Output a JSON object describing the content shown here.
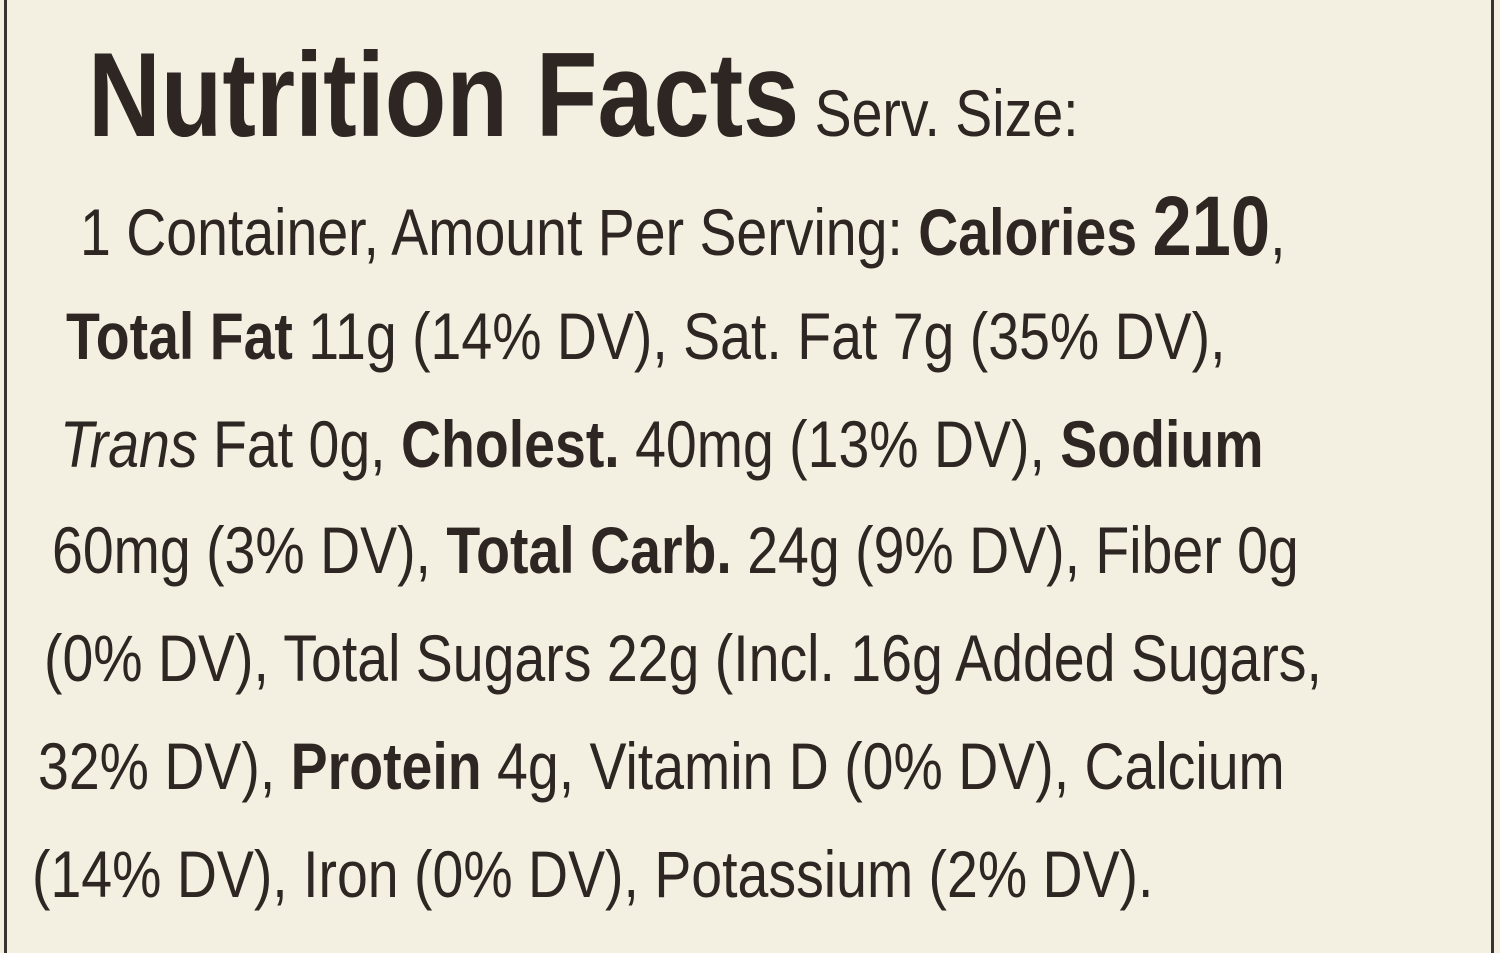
{
  "title": "Nutrition Facts",
  "lines": [
    [
      " Serv. Size:"
    ],
    [
      "1 Container, Amount Per Serving: ",
      "Calories",
      " ",
      "210",
      ","
    ],
    [
      "Total Fat",
      " 11g (14% DV), Sat. Fat 7g (35% DV),"
    ],
    [
      "Trans",
      " Fat 0g, ",
      "Cholest.",
      " 40mg (13% DV), ",
      "Sodium"
    ],
    [
      "60mg (3% DV), ",
      "Total Carb.",
      " 24g (9% DV), Fiber 0g"
    ],
    [
      "(0% DV), Total Sugars 22g (Incl. 16g Added Sugars,"
    ],
    [
      "32% DV), ",
      "Protein",
      " 4g, Vitamin D (0% DV), Calcium"
    ],
    [
      "(14% DV), Iron (0% DV), Potassium (2% DV)."
    ]
  ]
}
